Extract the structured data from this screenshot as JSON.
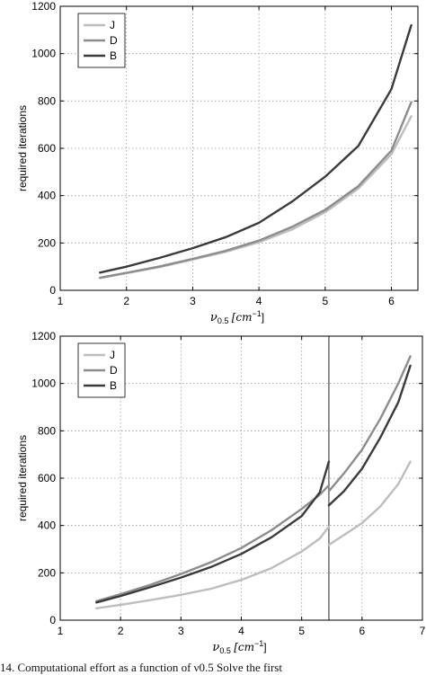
{
  "caption": "14. Computational effort as a function of ν0.5 Solve the first",
  "chart_data": [
    {
      "type": "line",
      "title": "",
      "xlabel_main": "ν",
      "xlabel_sub": "0.5",
      "xlabel_unit": "[cm",
      "xlabel_exp": "−1",
      "xlabel_close": "]",
      "ylabel": "required iterations",
      "xlim": [
        1,
        6.4
      ],
      "ylim": [
        0,
        1200
      ],
      "xticks": [
        1,
        2,
        3,
        4,
        5,
        6
      ],
      "yticks": [
        0,
        200,
        400,
        600,
        800,
        1000,
        1200
      ],
      "grid": true,
      "legend_position": "top-left",
      "vline": null,
      "colors": {
        "J": "#bdbdbd",
        "D": "#8c8c8c",
        "B": "#3a3a3a"
      },
      "series": [
        {
          "name": "J",
          "x": [
            1.6,
            2.0,
            2.5,
            3.0,
            3.5,
            4.0,
            4.5,
            5.0,
            5.5,
            6.0,
            6.3
          ],
          "y": [
            52,
            72,
            98,
            130,
            163,
            203,
            257,
            330,
            430,
            575,
            735
          ]
        },
        {
          "name": "D",
          "x": [
            1.6,
            2.0,
            2.5,
            3.0,
            3.5,
            4.0,
            4.5,
            5.0,
            5.5,
            6.0,
            6.3
          ],
          "y": [
            53,
            74,
            101,
            133,
            167,
            210,
            268,
            340,
            440,
            590,
            795
          ]
        },
        {
          "name": "B",
          "x": [
            1.6,
            2.0,
            2.5,
            3.0,
            3.5,
            4.0,
            4.5,
            5.0,
            5.5,
            6.0,
            6.3
          ],
          "y": [
            75,
            100,
            137,
            178,
            225,
            285,
            375,
            480,
            610,
            850,
            1120
          ]
        }
      ]
    },
    {
      "type": "line",
      "title": "",
      "xlabel_main": "ν",
      "xlabel_sub": "0.5",
      "xlabel_unit": "[cm",
      "xlabel_exp": "−1",
      "xlabel_close": "]",
      "ylabel": "required iterations",
      "xlim": [
        1,
        7
      ],
      "ylim": [
        0,
        1200
      ],
      "xticks": [
        1,
        2,
        3,
        4,
        5,
        6,
        7
      ],
      "yticks": [
        0,
        200,
        400,
        600,
        800,
        1000,
        1200
      ],
      "grid": true,
      "legend_position": "top-left",
      "vline": 5.45,
      "colors": {
        "J": "#bdbdbd",
        "D": "#8c8c8c",
        "B": "#3a3a3a"
      },
      "series": [
        {
          "name": "J",
          "segments": [
            {
              "x": [
                1.6,
                2.0,
                2.5,
                3.0,
                3.5,
                4.0,
                4.5,
                5.0,
                5.3,
                5.45
              ],
              "y": [
                50,
                65,
                85,
                107,
                133,
                170,
                220,
                290,
                345,
                395
              ]
            },
            {
              "x": [
                5.45,
                5.7,
                6.0,
                6.3,
                6.6,
                6.8
              ],
              "y": [
                318,
                360,
                410,
                480,
                575,
                670
              ]
            }
          ]
        },
        {
          "name": "D",
          "segments": [
            {
              "x": [
                1.6,
                2.0,
                2.5,
                3.0,
                3.5,
                4.0,
                4.5,
                5.0,
                5.3,
                5.45
              ],
              "y": [
                80,
                110,
                150,
                195,
                245,
                305,
                380,
                470,
                530,
                570
              ]
            },
            {
              "x": [
                5.45,
                5.7,
                6.0,
                6.3,
                6.6,
                6.8
              ],
              "y": [
                545,
                620,
                720,
                850,
                1000,
                1115
              ]
            }
          ]
        },
        {
          "name": "B",
          "segments": [
            {
              "x": [
                1.6,
                2.0,
                2.5,
                3.0,
                3.5,
                4.0,
                4.5,
                5.0,
                5.3,
                5.45
              ],
              "y": [
                75,
                102,
                140,
                180,
                225,
                280,
                350,
                440,
                540,
                670
              ]
            },
            {
              "x": [
                5.45,
                5.7,
                6.0,
                6.3,
                6.6,
                6.8
              ],
              "y": [
                485,
                545,
                640,
                770,
                920,
                1075
              ]
            }
          ]
        }
      ]
    }
  ]
}
